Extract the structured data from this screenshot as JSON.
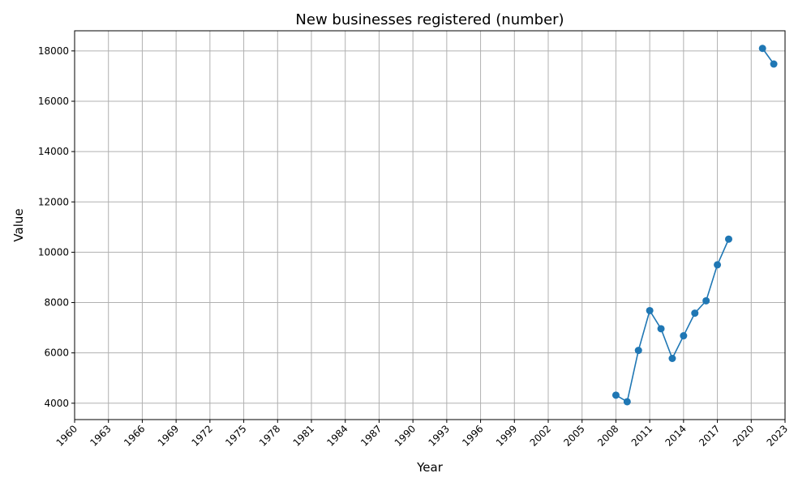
{
  "chart_data": {
    "type": "line",
    "title": "New businesses registered (number)",
    "xlabel": "Year",
    "ylabel": "Value",
    "xlim": [
      1960,
      2023
    ],
    "ylim": [
      3350,
      18800
    ],
    "grid": true,
    "color": "#1f77b4",
    "x_ticks": [
      1960,
      1963,
      1966,
      1969,
      1972,
      1975,
      1978,
      1981,
      1984,
      1987,
      1990,
      1993,
      1996,
      1999,
      2002,
      2005,
      2008,
      2011,
      2014,
      2017,
      2020,
      2023
    ],
    "y_ticks": [
      4000,
      6000,
      8000,
      10000,
      12000,
      14000,
      16000,
      18000
    ],
    "segments": [
      [
        {
          "x": 2008,
          "y": 4320
        },
        {
          "x": 2009,
          "y": 4060
        },
        {
          "x": 2010,
          "y": 6100
        },
        {
          "x": 2011,
          "y": 7680
        },
        {
          "x": 2012,
          "y": 6960
        },
        {
          "x": 2013,
          "y": 5780
        },
        {
          "x": 2014,
          "y": 6680
        },
        {
          "x": 2015,
          "y": 7580
        },
        {
          "x": 2016,
          "y": 8070
        },
        {
          "x": 2017,
          "y": 9500
        },
        {
          "x": 2018,
          "y": 10520
        }
      ],
      [
        {
          "x": 2021,
          "y": 18100
        },
        {
          "x": 2022,
          "y": 17480
        }
      ]
    ]
  }
}
